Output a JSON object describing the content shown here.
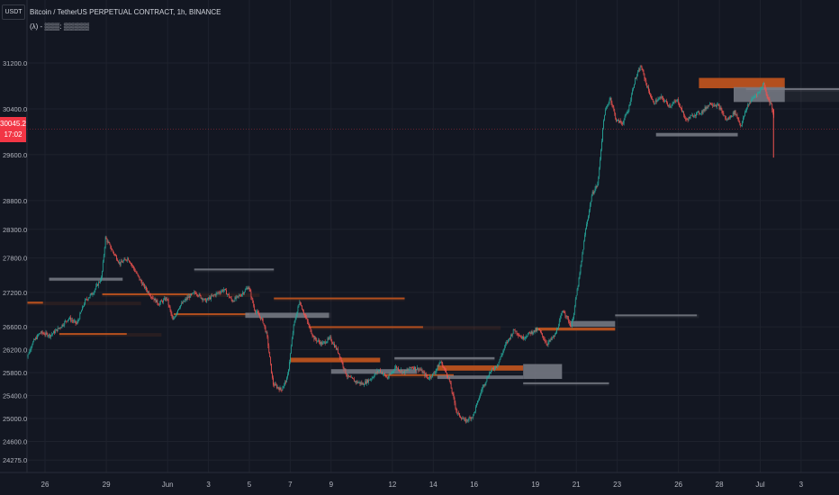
{
  "header": {
    "title": "Bitcoin / TetherUS PERPETUAL CONTRACT, 1h, BINANCE",
    "indicator": "(λ) - ▒▒▒: ▒▒▒▒▒",
    "currency": "USDT"
  },
  "last_price": {
    "price": "30045.2",
    "countdown": "17:02"
  },
  "colors": {
    "background": "#131722",
    "up": "#26a69a",
    "down": "#ef5350",
    "bearish_zone": "#c2541e",
    "bullish_zone": "#787b86",
    "last_price": "#f23645"
  },
  "chart_data": {
    "type": "candlestick",
    "title": "Bitcoin / TetherUS PERPETUAL CONTRACT, 1h, BINANCE",
    "xlabel": "",
    "ylabel": "",
    "y_axis_side": "left",
    "ylim": [
      24200,
      31650
    ],
    "x_ticks": [
      {
        "label": "26",
        "day": 0
      },
      {
        "label": "29",
        "day": 3
      },
      {
        "label": "Jun",
        "day": 6
      },
      {
        "label": "3",
        "day": 8
      },
      {
        "label": "5",
        "day": 10
      },
      {
        "label": "7",
        "day": 12
      },
      {
        "label": "9",
        "day": 14
      },
      {
        "label": "12",
        "day": 17
      },
      {
        "label": "14",
        "day": 19
      },
      {
        "label": "16",
        "day": 21
      },
      {
        "label": "19",
        "day": 24
      },
      {
        "label": "21",
        "day": 26
      },
      {
        "label": "23",
        "day": 28
      },
      {
        "label": "26",
        "day": 31
      },
      {
        "label": "28",
        "day": 33
      },
      {
        "label": "Jul",
        "day": 35
      },
      {
        "label": "3",
        "day": 37
      }
    ],
    "y_ticks": [
      "31200.0",
      "30400.0",
      "29600.0",
      "28800.0",
      "28300.0",
      "27800.0",
      "27200.0",
      "26600.0",
      "26200.0",
      "25800.0",
      "25400.0",
      "25000.0",
      "24600.0",
      "24275.0"
    ],
    "y_tick_values": [
      31200,
      30400,
      29600,
      28800,
      28300,
      27800,
      27200,
      26600,
      26200,
      25800,
      25400,
      25000,
      24600,
      24275
    ],
    "price_path": [
      [
        -1.0,
        25900
      ],
      [
        -0.6,
        26300
      ],
      [
        -0.2,
        26500
      ],
      [
        0.3,
        26450
      ],
      [
        0.8,
        26600
      ],
      [
        1.2,
        26750
      ],
      [
        1.6,
        26650
      ],
      [
        2.0,
        27050
      ],
      [
        2.4,
        27200
      ],
      [
        2.8,
        27450
      ],
      [
        3.0,
        28150
      ],
      [
        3.3,
        27950
      ],
      [
        3.7,
        27700
      ],
      [
        4.1,
        27800
      ],
      [
        4.4,
        27600
      ],
      [
        4.8,
        27350
      ],
      [
        5.2,
        27150
      ],
      [
        5.6,
        27000
      ],
      [
        6.0,
        27100
      ],
      [
        6.3,
        26700
      ],
      [
        6.6,
        26950
      ],
      [
        7.0,
        27100
      ],
      [
        7.4,
        27200
      ],
      [
        7.9,
        27050
      ],
      [
        8.3,
        27150
      ],
      [
        8.8,
        27250
      ],
      [
        9.2,
        27050
      ],
      [
        9.6,
        27150
      ],
      [
        10.0,
        27300
      ],
      [
        10.3,
        26900
      ],
      [
        10.7,
        26700
      ],
      [
        10.9,
        26450
      ],
      [
        11.2,
        25600
      ],
      [
        11.6,
        25500
      ],
      [
        11.9,
        25700
      ],
      [
        12.2,
        26600
      ],
      [
        12.5,
        27050
      ],
      [
        12.8,
        26750
      ],
      [
        13.2,
        26400
      ],
      [
        13.6,
        26300
      ],
      [
        14.0,
        26400
      ],
      [
        14.4,
        26150
      ],
      [
        14.8,
        25750
      ],
      [
        15.2,
        25650
      ],
      [
        15.6,
        25600
      ],
      [
        16.0,
        25700
      ],
      [
        16.4,
        25850
      ],
      [
        16.8,
        25700
      ],
      [
        17.2,
        25900
      ],
      [
        17.6,
        25800
      ],
      [
        18.0,
        25900
      ],
      [
        18.4,
        25850
      ],
      [
        18.8,
        25700
      ],
      [
        19.1,
        25800
      ],
      [
        19.4,
        26000
      ],
      [
        19.8,
        25700
      ],
      [
        20.2,
        25100
      ],
      [
        20.6,
        24950
      ],
      [
        21.0,
        25050
      ],
      [
        21.4,
        25500
      ],
      [
        21.8,
        25800
      ],
      [
        22.2,
        25950
      ],
      [
        22.6,
        26300
      ],
      [
        23.0,
        26550
      ],
      [
        23.4,
        26400
      ],
      [
        23.8,
        26500
      ],
      [
        24.2,
        26550
      ],
      [
        24.6,
        26300
      ],
      [
        25.0,
        26450
      ],
      [
        25.4,
        26900
      ],
      [
        25.8,
        26600
      ],
      [
        26.2,
        27500
      ],
      [
        26.5,
        28300
      ],
      [
        26.8,
        28900
      ],
      [
        27.1,
        29100
      ],
      [
        27.4,
        30300
      ],
      [
        27.7,
        30600
      ],
      [
        28.0,
        30200
      ],
      [
        28.3,
        30150
      ],
      [
        28.6,
        30400
      ],
      [
        28.9,
        30900
      ],
      [
        29.2,
        31150
      ],
      [
        29.5,
        30800
      ],
      [
        29.8,
        30500
      ],
      [
        30.2,
        30600
      ],
      [
        30.6,
        30450
      ],
      [
        31.0,
        30550
      ],
      [
        31.4,
        30200
      ],
      [
        31.8,
        30300
      ],
      [
        32.2,
        30350
      ],
      [
        32.6,
        30500
      ],
      [
        33.0,
        30450
      ],
      [
        33.4,
        30200
      ],
      [
        33.8,
        30350
      ],
      [
        34.1,
        30100
      ],
      [
        34.4,
        30450
      ],
      [
        34.7,
        30600
      ],
      [
        35.0,
        30700
      ],
      [
        35.2,
        30850
      ],
      [
        35.4,
        30600
      ],
      [
        35.6,
        30450
      ],
      [
        35.7,
        30250
      ]
    ],
    "zones": [
      {
        "kind": "bearish",
        "day_start": -1.0,
        "day_end": -0.1,
        "price": 27020,
        "thick": 35,
        "faint_end": 4.7
      },
      {
        "kind": "bullish",
        "day_start": 0.2,
        "day_end": 3.8,
        "price": 27430,
        "thick": 50,
        "faint_end": 3.8
      },
      {
        "kind": "bearish",
        "day_start": 0.7,
        "day_end": 4.0,
        "price": 26480,
        "thick": 20,
        "faint_end": 5.7
      },
      {
        "kind": "bearish",
        "day_start": 2.8,
        "day_end": 7.2,
        "price": 27170,
        "thick": 25,
        "faint_end": 10.5
      },
      {
        "kind": "bullish",
        "day_start": 7.3,
        "day_end": 11.2,
        "price": 27600,
        "thick": 30,
        "faint_end": 11.2
      },
      {
        "kind": "bearish",
        "day_start": 6.3,
        "day_end": 10.0,
        "price": 26820,
        "thick": 30,
        "faint_end": 10.0
      },
      {
        "kind": "bullish",
        "day_start": 9.8,
        "day_end": 13.9,
        "price": 26800,
        "thick": 90,
        "faint_end": 14.0
      },
      {
        "kind": "bearish",
        "day_start": 11.2,
        "day_end": 17.6,
        "price": 27100,
        "thick": 20,
        "faint_end": 17.6
      },
      {
        "kind": "bearish",
        "day_start": 12.9,
        "day_end": 18.5,
        "price": 26600,
        "thick": 20,
        "faint_end": 22.3
      },
      {
        "kind": "bearish",
        "day_start": 12.0,
        "day_end": 16.4,
        "price": 26020,
        "thick": 80,
        "faint_end": 16.4
      },
      {
        "kind": "bullish",
        "day_start": 14.0,
        "day_end": 18.2,
        "price": 25820,
        "thick": 80,
        "faint_end": 18.2
      },
      {
        "kind": "bearish",
        "day_start": 16.6,
        "day_end": 20.0,
        "price": 25760,
        "thick": 25,
        "faint_end": 20.0
      },
      {
        "kind": "bullish",
        "day_start": 17.1,
        "day_end": 22.0,
        "price": 26050,
        "thick": 40,
        "faint_end": 22.0
      },
      {
        "kind": "bearish",
        "day_start": 19.2,
        "day_end": 23.4,
        "price": 25880,
        "thick": 90,
        "faint_end": 23.4
      },
      {
        "kind": "bullish",
        "day_start": 19.2,
        "day_end": 23.4,
        "price": 25720,
        "thick": 60,
        "faint_end": 23.4
      },
      {
        "kind": "bullish",
        "day_start": 23.4,
        "day_end": 25.3,
        "price": 25820,
        "thick": 260,
        "faint_end": 25.3
      },
      {
        "kind": "bullish",
        "day_start": 23.4,
        "day_end": 27.6,
        "price": 25620,
        "thick": 20,
        "faint_end": 27.6
      },
      {
        "kind": "bearish",
        "day_start": 24.0,
        "day_end": 27.9,
        "price": 26560,
        "thick": 50,
        "faint_end": 27.9
      },
      {
        "kind": "bullish",
        "day_start": 25.7,
        "day_end": 27.9,
        "price": 26650,
        "thick": 100,
        "faint_end": 27.9
      },
      {
        "kind": "bullish",
        "day_start": 27.9,
        "day_end": 31.9,
        "price": 26800,
        "thick": 30,
        "faint_end": 32.0
      },
      {
        "kind": "bullish",
        "day_start": 29.9,
        "day_end": 33.9,
        "price": 29950,
        "thick": 60,
        "faint_end": 33.9
      },
      {
        "kind": "bearish",
        "day_start": 32.0,
        "day_end": 36.2,
        "price": 30850,
        "thick": 180,
        "faint_end": 36.1
      },
      {
        "kind": "bullish",
        "day_start": 33.7,
        "day_end": 36.2,
        "price": 30650,
        "thick": 260,
        "faint_end": 39.0
      },
      {
        "kind": "bullish",
        "day_start": 34.3,
        "day_end": 39.0,
        "price": 30750,
        "thick": 20,
        "faint_end": 39.0
      }
    ]
  }
}
